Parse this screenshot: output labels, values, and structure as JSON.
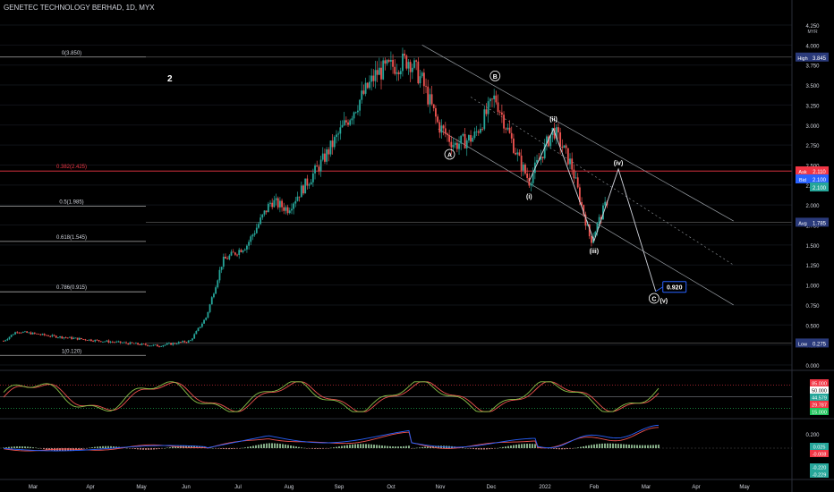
{
  "header": {
    "title": "GENETEC TECHNOLOGY BERHAD, 1D, MYX"
  },
  "annotation_note": "2",
  "price_axis": {
    "labels": [
      "4.250",
      "4.000",
      "3.750",
      "3.500",
      "3.250",
      "3.000",
      "2.750",
      "2.500",
      "2.250",
      "2.000",
      "1.750",
      "1.500",
      "1.250",
      "1.000",
      "0.750",
      "0.500",
      "0.250",
      "0.000"
    ],
    "currency": "MYR"
  },
  "price_badges": {
    "high": {
      "label": "High",
      "value": "3.845",
      "color": "#2a3a7a"
    },
    "ask": {
      "label": "Ask",
      "value": "2.110",
      "color": "#f23645"
    },
    "bid": {
      "label": "Bid",
      "value": "2.100",
      "color": "#2962ff"
    },
    "last": {
      "value": "2.100",
      "color": "#26a69a"
    },
    "close_line": {
      "value": "2.420",
      "color": "#f23645"
    },
    "avg": {
      "label": "Avg",
      "value": "1.785",
      "color": "#2a3a7a"
    },
    "low": {
      "label": "Low",
      "value": "0.275",
      "color": "#2a3a7a"
    }
  },
  "fib_levels": [
    {
      "label": "0(3.850)",
      "price": 3.85
    },
    {
      "label": "0.382(2.425)",
      "price": 2.425
    },
    {
      "label": "0.5(1.985)",
      "price": 1.985
    },
    {
      "label": "0.618(1.545)",
      "price": 1.545
    },
    {
      "label": "0.786(0.915)",
      "price": 0.915
    },
    {
      "label": "1(0.120)",
      "price": 0.12
    }
  ],
  "wave_labels": [
    {
      "text": "A",
      "circled": true,
      "date": 275,
      "price": 2.6
    },
    {
      "text": "B",
      "circled": true,
      "date": 303,
      "price": 3.58
    },
    {
      "text": "(i)",
      "circled": false,
      "date": 324,
      "price": 2.08
    },
    {
      "text": "(ii)",
      "circled": false,
      "date": 339,
      "price": 3.05
    },
    {
      "text": "(iii)",
      "circled": false,
      "date": 364,
      "price": 1.4
    },
    {
      "text": "(iv)",
      "circled": false,
      "date": 379,
      "price": 2.5
    },
    {
      "text": "C",
      "circled": true,
      "date": 401,
      "price": 0.8
    },
    {
      "text": "(v)",
      "circled": false,
      "date": 407,
      "price": 0.78
    }
  ],
  "target_box": {
    "value": "0.920",
    "color": "#2962ff"
  },
  "stoch_panel": {
    "labels": [
      "85.000",
      "50.000",
      "44.579",
      "29.787",
      "15.000"
    ],
    "colors": [
      "#f23645",
      "#ffffff",
      "#26a69a",
      "#f23645",
      "#22c55e"
    ]
  },
  "macd_panel": {
    "labels": [
      "0.200",
      "0.025",
      "-0.008",
      "-0.220",
      "-0.229"
    ],
    "colors": [
      "",
      "#26a69a",
      "#f23645",
      "#26a69a",
      "#26a69a"
    ]
  },
  "time_axis": {
    "labels": [
      "Mar",
      "Apr",
      "May",
      "Jun",
      "Jul",
      "Aug",
      "Sep",
      "Oct",
      "Nov",
      "Dec",
      "2022",
      "Feb",
      "Mar",
      "Apr",
      "May",
      "Jun"
    ]
  },
  "chart_data": {
    "type": "candlestick",
    "title": "GENETEC TECHNOLOGY BERHAD, 1D, MYX",
    "ylim": [
      0,
      4.25
    ],
    "price_anchors": [
      {
        "day": 0,
        "price": 0.3
      },
      {
        "day": 8,
        "price": 0.42
      },
      {
        "day": 30,
        "price": 0.36
      },
      {
        "day": 60,
        "price": 0.3
      },
      {
        "day": 95,
        "price": 0.24
      },
      {
        "day": 115,
        "price": 0.3
      },
      {
        "day": 125,
        "price": 0.6
      },
      {
        "day": 135,
        "price": 1.3
      },
      {
        "day": 150,
        "price": 1.5
      },
      {
        "day": 165,
        "price": 2.05
      },
      {
        "day": 175,
        "price": 1.95
      },
      {
        "day": 195,
        "price": 2.5
      },
      {
        "day": 210,
        "price": 3.0
      },
      {
        "day": 230,
        "price": 3.65
      },
      {
        "day": 250,
        "price": 3.82
      },
      {
        "day": 258,
        "price": 3.55
      },
      {
        "day": 268,
        "price": 3.0
      },
      {
        "day": 278,
        "price": 2.75
      },
      {
        "day": 290,
        "price": 2.85
      },
      {
        "day": 303,
        "price": 3.35
      },
      {
        "day": 318,
        "price": 2.55
      },
      {
        "day": 324,
        "price": 2.3
      },
      {
        "day": 339,
        "price": 2.95
      },
      {
        "day": 350,
        "price": 2.5
      },
      {
        "day": 362,
        "price": 1.55
      },
      {
        "day": 373,
        "price": 2.1
      }
    ],
    "projection": [
      {
        "day": 324,
        "price": 2.3
      },
      {
        "day": 339,
        "price": 2.95
      },
      {
        "day": 364,
        "price": 1.55
      },
      {
        "day": 379,
        "price": 2.45
      },
      {
        "day": 402,
        "price": 0.92
      }
    ]
  }
}
